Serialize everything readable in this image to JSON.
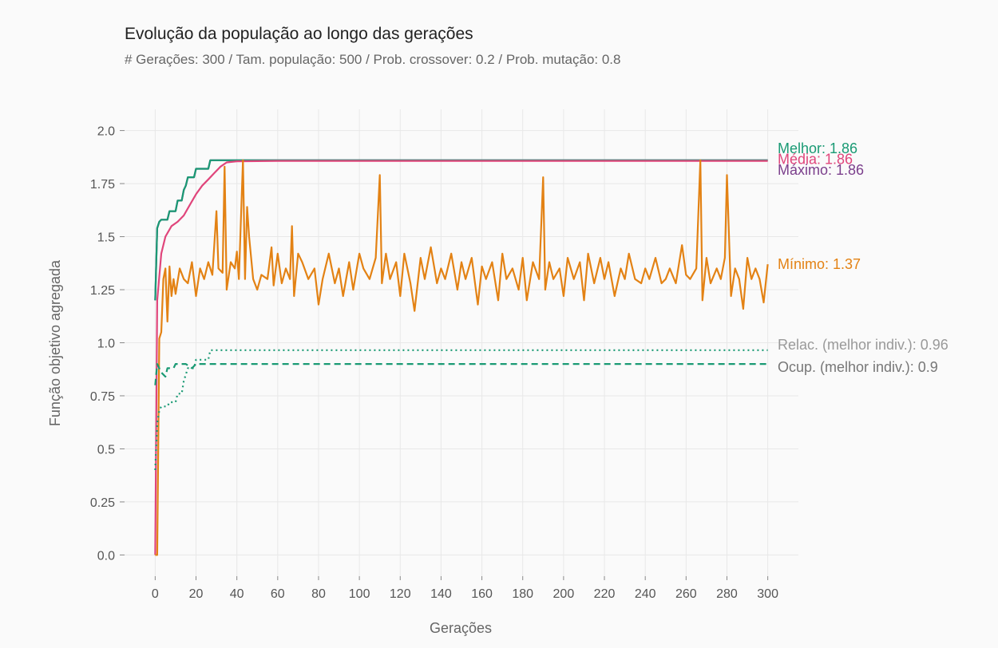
{
  "chart_data": {
    "type": "line",
    "title": "Evolução da população ao longo das gerações",
    "subtitle": "# Gerações: 300 / Tam. população: 500 / Prob. crossover: 0.2 / Prob. mutação: 0.8",
    "xlabel": "Gerações",
    "ylabel": "Função objetivo agregada",
    "xlim": [
      -15,
      315
    ],
    "ylim": [
      -0.1,
      2.1
    ],
    "xticks": [
      0,
      20,
      40,
      60,
      80,
      100,
      120,
      140,
      160,
      180,
      200,
      220,
      240,
      260,
      280,
      300
    ],
    "yticks": [
      0.0,
      0.25,
      0.5,
      0.75,
      1.0,
      1.25,
      1.5,
      1.75,
      2.0
    ],
    "ytick_labels": [
      "0.0",
      "0.25",
      "0.5",
      "0.75",
      "1.0",
      "1.25",
      "1.5",
      "1.75",
      "2.0"
    ],
    "grid": true,
    "series": [
      {
        "name": "Máximo",
        "label": "Máximo: 1.86",
        "color": "#7b3f8c",
        "style": "solid",
        "points": [
          [
            0,
            1.2
          ],
          [
            1,
            1.54
          ],
          [
            2,
            1.57
          ],
          [
            3,
            1.58
          ],
          [
            6,
            1.58
          ],
          [
            7,
            1.62
          ],
          [
            10,
            1.62
          ],
          [
            11,
            1.67
          ],
          [
            13,
            1.67
          ],
          [
            14,
            1.72
          ],
          [
            15,
            1.74
          ],
          [
            16,
            1.78
          ],
          [
            19,
            1.78
          ],
          [
            20,
            1.82
          ],
          [
            26,
            1.82
          ],
          [
            27,
            1.86
          ],
          [
            300,
            1.86
          ]
        ]
      },
      {
        "name": "Melhor",
        "label": "Melhor: 1.86",
        "color": "#1a9a74",
        "style": "solid",
        "points": [
          [
            0,
            1.2
          ],
          [
            1,
            1.54
          ],
          [
            2,
            1.57
          ],
          [
            3,
            1.58
          ],
          [
            6,
            1.58
          ],
          [
            7,
            1.62
          ],
          [
            10,
            1.62
          ],
          [
            11,
            1.67
          ],
          [
            13,
            1.67
          ],
          [
            14,
            1.72
          ],
          [
            15,
            1.74
          ],
          [
            16,
            1.78
          ],
          [
            19,
            1.78
          ],
          [
            20,
            1.82
          ],
          [
            26,
            1.82
          ],
          [
            27,
            1.86
          ],
          [
            300,
            1.86
          ]
        ]
      },
      {
        "name": "Média",
        "label": "Média: 1.86",
        "color": "#e0457b",
        "style": "solid",
        "points": [
          [
            0,
            0.0
          ],
          [
            1,
            1.2
          ],
          [
            3,
            1.42
          ],
          [
            5,
            1.5
          ],
          [
            8,
            1.55
          ],
          [
            11,
            1.57
          ],
          [
            14,
            1.6
          ],
          [
            17,
            1.65
          ],
          [
            20,
            1.7
          ],
          [
            23,
            1.74
          ],
          [
            26,
            1.77
          ],
          [
            29,
            1.8
          ],
          [
            32,
            1.83
          ],
          [
            35,
            1.85
          ],
          [
            40,
            1.855
          ],
          [
            60,
            1.857
          ],
          [
            100,
            1.857
          ],
          [
            300,
            1.857
          ]
        ]
      },
      {
        "name": "Mínimo",
        "label": "Mínimo: 1.37",
        "color": "#e38214",
        "style": "solid",
        "points": [
          [
            0,
            0.0
          ],
          [
            1,
            0.0
          ],
          [
            2,
            1.02
          ],
          [
            3,
            1.05
          ],
          [
            4,
            1.3
          ],
          [
            5,
            1.35
          ],
          [
            6,
            1.1
          ],
          [
            7,
            1.36
          ],
          [
            8,
            1.22
          ],
          [
            9,
            1.3
          ],
          [
            10,
            1.23
          ],
          [
            12,
            1.35
          ],
          [
            14,
            1.3
          ],
          [
            16,
            1.28
          ],
          [
            18,
            1.38
          ],
          [
            20,
            1.22
          ],
          [
            22,
            1.35
          ],
          [
            24,
            1.3
          ],
          [
            26,
            1.38
          ],
          [
            28,
            1.32
          ],
          [
            30,
            1.62
          ],
          [
            31,
            1.35
          ],
          [
            33,
            1.33
          ],
          [
            34,
            1.83
          ],
          [
            35,
            1.25
          ],
          [
            37,
            1.38
          ],
          [
            39,
            1.35
          ],
          [
            40,
            1.43
          ],
          [
            41,
            1.3
          ],
          [
            43,
            1.86
          ],
          [
            44,
            1.3
          ],
          [
            45,
            1.64
          ],
          [
            46,
            1.5
          ],
          [
            48,
            1.3
          ],
          [
            50,
            1.25
          ],
          [
            52,
            1.32
          ],
          [
            55,
            1.3
          ],
          [
            57,
            1.45
          ],
          [
            58,
            1.27
          ],
          [
            60,
            1.42
          ],
          [
            62,
            1.28
          ],
          [
            64,
            1.35
          ],
          [
            66,
            1.3
          ],
          [
            67,
            1.55
          ],
          [
            68,
            1.22
          ],
          [
            70,
            1.42
          ],
          [
            72,
            1.38
          ],
          [
            75,
            1.3
          ],
          [
            78,
            1.35
          ],
          [
            80,
            1.18
          ],
          [
            82,
            1.3
          ],
          [
            85,
            1.42
          ],
          [
            88,
            1.28
          ],
          [
            90,
            1.35
          ],
          [
            92,
            1.22
          ],
          [
            95,
            1.38
          ],
          [
            97,
            1.25
          ],
          [
            100,
            1.42
          ],
          [
            102,
            1.35
          ],
          [
            105,
            1.3
          ],
          [
            108,
            1.4
          ],
          [
            110,
            1.79
          ],
          [
            111,
            1.28
          ],
          [
            113,
            1.42
          ],
          [
            115,
            1.3
          ],
          [
            118,
            1.38
          ],
          [
            120,
            1.22
          ],
          [
            122,
            1.42
          ],
          [
            125,
            1.28
          ],
          [
            127,
            1.15
          ],
          [
            130,
            1.4
          ],
          [
            132,
            1.3
          ],
          [
            135,
            1.45
          ],
          [
            138,
            1.28
          ],
          [
            140,
            1.35
          ],
          [
            142,
            1.3
          ],
          [
            145,
            1.42
          ],
          [
            148,
            1.25
          ],
          [
            150,
            1.38
          ],
          [
            152,
            1.3
          ],
          [
            155,
            1.4
          ],
          [
            158,
            1.18
          ],
          [
            160,
            1.36
          ],
          [
            162,
            1.3
          ],
          [
            165,
            1.38
          ],
          [
            168,
            1.2
          ],
          [
            170,
            1.42
          ],
          [
            172,
            1.3
          ],
          [
            175,
            1.35
          ],
          [
            178,
            1.25
          ],
          [
            180,
            1.4
          ],
          [
            182,
            1.2
          ],
          [
            185,
            1.38
          ],
          [
            188,
            1.3
          ],
          [
            190,
            1.78
          ],
          [
            191,
            1.25
          ],
          [
            193,
            1.38
          ],
          [
            195,
            1.3
          ],
          [
            198,
            1.35
          ],
          [
            200,
            1.22
          ],
          [
            202,
            1.4
          ],
          [
            205,
            1.3
          ],
          [
            208,
            1.38
          ],
          [
            210,
            1.2
          ],
          [
            212,
            1.42
          ],
          [
            215,
            1.28
          ],
          [
            218,
            1.4
          ],
          [
            220,
            1.3
          ],
          [
            222,
            1.38
          ],
          [
            225,
            1.22
          ],
          [
            228,
            1.35
          ],
          [
            230,
            1.3
          ],
          [
            232,
            1.42
          ],
          [
            235,
            1.3
          ],
          [
            238,
            1.28
          ],
          [
            240,
            1.35
          ],
          [
            242,
            1.3
          ],
          [
            245,
            1.4
          ],
          [
            248,
            1.28
          ],
          [
            250,
            1.3
          ],
          [
            252,
            1.35
          ],
          [
            255,
            1.28
          ],
          [
            258,
            1.46
          ],
          [
            260,
            1.32
          ],
          [
            262,
            1.3
          ],
          [
            265,
            1.35
          ],
          [
            267,
            1.86
          ],
          [
            268,
            1.2
          ],
          [
            270,
            1.4
          ],
          [
            272,
            1.28
          ],
          [
            275,
            1.35
          ],
          [
            277,
            1.3
          ],
          [
            279,
            1.4
          ],
          [
            280,
            1.79
          ],
          [
            282,
            1.22
          ],
          [
            284,
            1.35
          ],
          [
            286,
            1.3
          ],
          [
            288,
            1.16
          ],
          [
            290,
            1.4
          ],
          [
            292,
            1.3
          ],
          [
            294,
            1.35
          ],
          [
            296,
            1.3
          ],
          [
            298,
            1.19
          ],
          [
            300,
            1.37
          ]
        ]
      },
      {
        "name": "Relac. (melhor indiv.)",
        "label": "Relac. (melhor indiv.): 0.96",
        "color": "#1a9a74",
        "style": "dotted",
        "points": [
          [
            0,
            0.4
          ],
          [
            1,
            0.62
          ],
          [
            2,
            0.68
          ],
          [
            3,
            0.7
          ],
          [
            6,
            0.7
          ],
          [
            7,
            0.72
          ],
          [
            10,
            0.72
          ],
          [
            11,
            0.76
          ],
          [
            13,
            0.76
          ],
          [
            14,
            0.82
          ],
          [
            15,
            0.85
          ],
          [
            16,
            0.88
          ],
          [
            19,
            0.88
          ],
          [
            20,
            0.92
          ],
          [
            26,
            0.92
          ],
          [
            27,
            0.965
          ],
          [
            300,
            0.965
          ]
        ]
      },
      {
        "name": "Ocup. (melhor indiv.)",
        "label": "Ocup. (melhor indiv.): 0.9",
        "color": "#1a9a74",
        "style": "dashed",
        "points": [
          [
            0,
            0.8
          ],
          [
            1,
            0.9
          ],
          [
            3,
            0.86
          ],
          [
            5,
            0.84
          ],
          [
            6,
            0.88
          ],
          [
            9,
            0.88
          ],
          [
            10,
            0.9
          ],
          [
            15,
            0.9
          ],
          [
            18,
            0.88
          ],
          [
            20,
            0.9
          ],
          [
            300,
            0.9
          ]
        ]
      }
    ]
  },
  "end_labels": [
    {
      "text": "Melhor: 1.86",
      "color": "#1a9a74",
      "y": 1.915
    },
    {
      "text": "Média: 1.86",
      "color": "#e0457b",
      "y": 1.865
    },
    {
      "text": "Máximo: 1.86",
      "color": "#7b3f8c",
      "y": 1.815
    },
    {
      "text": "Mínimo: 1.37",
      "color": "#e38214",
      "y": 1.37
    },
    {
      "text": "Relac. (melhor indiv.): 0.96",
      "color": "#999999",
      "y": 0.99
    },
    {
      "text": "Ocup. (melhor indiv.): 0.9",
      "color": "#777777",
      "y": 0.885
    }
  ]
}
